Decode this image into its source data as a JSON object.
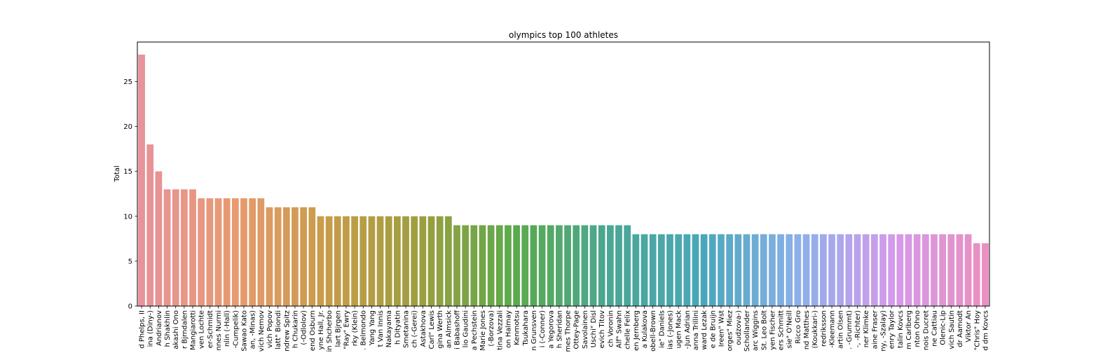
{
  "chart_data": {
    "type": "bar",
    "title": "olympics top 100 athletes",
    "xlabel": "",
    "ylabel": "Total",
    "ylim": [
      0,
      29.4
    ],
    "yticks": [
      0,
      5,
      10,
      15,
      20,
      25
    ],
    "grid": false,
    "categories": [
      "d Phelps, II",
      "ina (Diny-)",
      "Andrianov",
      "h Shakhlin",
      "akashi Ono",
      "r Bjrndalen",
      "Mangiarotti",
      "ven Lochte",
      "er-Schmidt",
      "nnes Nurmi",
      "nlin (-Hall)",
      "-Cumpelik)",
      "Sawao Kato",
      "an, -Minas)",
      "vich Nemov",
      "vich Popov",
      "latt\" Biondi",
      "ndrew Spitz",
      "h Chukarin",
      "(-Odlolov)",
      "end Osburn",
      "yne Hall, Jr.",
      "in Shcherbo",
      "lart Bjrgen",
      "\"Ray\" Ewry",
      "rky (Klein)",
      ". Belmondo",
      "Yang Yang",
      "t Van Innis",
      "Nakayama",
      "h Dityatin",
      "Smetanina",
      "ch (-Gerei)",
      "Astakhova",
      "Carl\" Lewis",
      "gina Werth",
      "an Almsick",
      "i Babashoff",
      "lio Gaudini",
      "a Pechstein",
      "Marie Jones",
      "(-Borzova)",
      "tina Vezzali",
      "on Halmay",
      "Kenmotsu",
      "Tsukahara",
      "n Grunsven",
      "i (-Conner)",
      "a Yegorova",
      "h Sheridan",
      "mes Thorpe",
      "Ottey-Page",
      "Savolainen",
      "Uschi\" Disl",
      "evich Titov",
      "ch Voronin",
      "Alf\" Swahn",
      "chelle Felix",
      "en Jernberg",
      "a Kulakova",
      "obell-Brown",
      "ie\" Daniels",
      "ias (-Jones)",
      "ugen Mack",
      "-Jun Adrian",
      "anna Trillini",
      "ward Lezak",
      "e de Bruijn",
      "Ireen\" Wst",
      "orges\" Miez",
      "oudzova-)",
      "Schollander",
      "arc Wiggins",
      "St. Leo Bolt",
      "yen Fischer",
      "ers Schmitt",
      "sie\" O'Neill",
      "Ricco Gro",
      "nd Matthes",
      "(Koukkari-)",
      "redriksson",
      "-Kleemann",
      "artin Olsen",
      ". -Grummt)",
      "-, -Richter)",
      "ner Klimke",
      "aine Fraser",
      "ny, -Szalay)",
      "enry Taylor",
      "talin Kovcs",
      "m Carlberg",
      "nton Ohno",
      "nois Ducret",
      "ne Cattiau",
      "Olenic-Lip",
      "vich Sautin",
      "dr Aamodt",
      "Viktor An",
      "\"Chris\" Hoy",
      "d dm Kovcs"
    ],
    "values": [
      28,
      18,
      15,
      13,
      13,
      13,
      13,
      12,
      12,
      12,
      12,
      12,
      12,
      12,
      12,
      11,
      11,
      11,
      11,
      11,
      11,
      10,
      10,
      10,
      10,
      10,
      10,
      10,
      10,
      10,
      10,
      10,
      10,
      10,
      10,
      10,
      10,
      9,
      9,
      9,
      9,
      9,
      9,
      9,
      9,
      9,
      9,
      9,
      9,
      9,
      9,
      9,
      9,
      9,
      9,
      9,
      9,
      9,
      8,
      8,
      8,
      8,
      8,
      8,
      8,
      8,
      8,
      8,
      8,
      8,
      8,
      8,
      8,
      8,
      8,
      8,
      8,
      8,
      8,
      8,
      8,
      8,
      8,
      8,
      8,
      8,
      8,
      8,
      8,
      8,
      8,
      8,
      8,
      8,
      8,
      8,
      8,
      8,
      7,
      7
    ]
  }
}
